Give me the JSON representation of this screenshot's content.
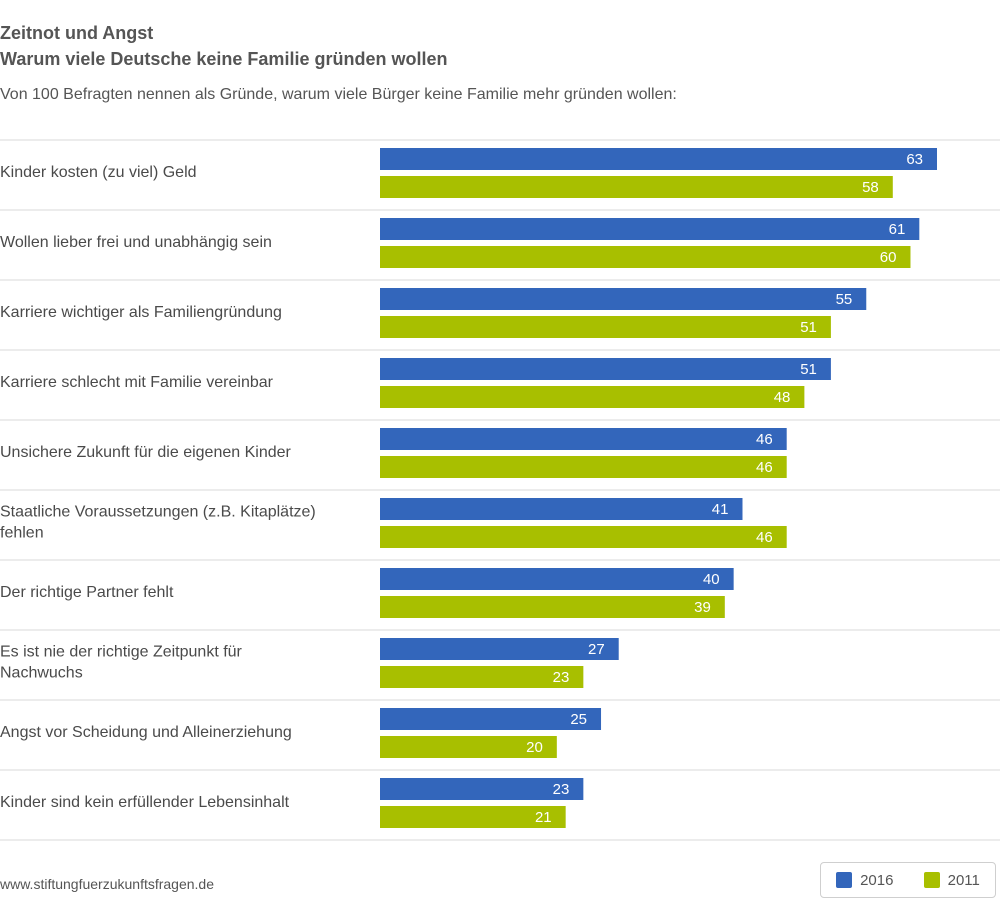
{
  "header": {
    "title": "Zeitnot und Angst",
    "subtitle": "Warum viele Deutsche keine Familie gründen wollen",
    "intro": "Von 100 Befragten nennen als Gründe, warum viele Bürger keine Familie mehr gründen wollen:"
  },
  "footer": {
    "source": "www.stiftungfuerzukunftsfragen.de"
  },
  "chart_data": {
    "type": "bar",
    "orientation": "horizontal",
    "title": "Zeitnot und Angst",
    "subtitle": "Warum viele Deutsche keine Familie gründen wollen",
    "categories": [
      "Kinder kosten (zu viel) Geld",
      "Wollen lieber frei und unabhängig sein",
      "Karriere wichtiger als Familiengründung",
      "Karriere schlecht mit Familie vereinbar",
      "Unsichere Zukunft für die eigenen Kinder",
      "Staatliche Voraussetzungen (z.B. Kitaplätze) fehlen",
      "Der richtige Partner fehlt",
      "Es ist nie der richtige Zeitpunkt für Nachwuchs",
      "Angst vor Scheidung und Alleinerziehung",
      "Kinder sind kein erfüllender Lebensinhalt"
    ],
    "series": [
      {
        "name": "2016",
        "color": "#3366bb",
        "values": [
          63,
          61,
          55,
          51,
          46,
          41,
          40,
          27,
          25,
          23
        ]
      },
      {
        "name": "2011",
        "color": "#a8bf00",
        "values": [
          58,
          60,
          51,
          48,
          46,
          46,
          39,
          23,
          20,
          21
        ]
      }
    ],
    "xlim": [
      0,
      63
    ],
    "grid": false,
    "legend": "bottom-right",
    "data_labels": true
  }
}
